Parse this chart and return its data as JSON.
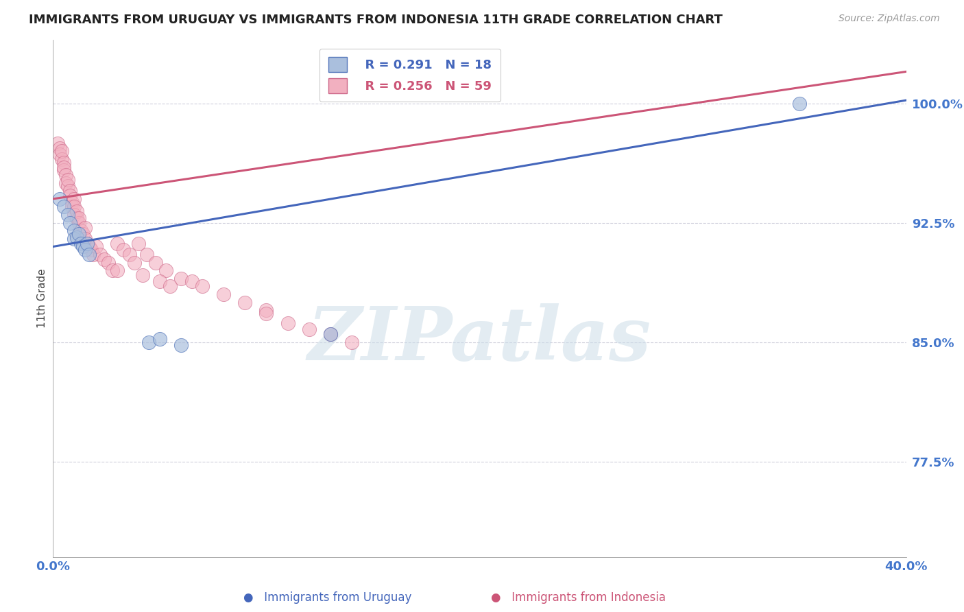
{
  "title": "IMMIGRANTS FROM URUGUAY VS IMMIGRANTS FROM INDONESIA 11TH GRADE CORRELATION CHART",
  "source_text": "Source: ZipAtlas.com",
  "ylabel": "11th Grade",
  "ytick_vals": [
    0.775,
    0.85,
    0.925,
    1.0
  ],
  "ytick_labels": [
    "77.5%",
    "85.0%",
    "92.5%",
    "100.0%"
  ],
  "xmin": 0.0,
  "xmax": 0.4,
  "ymin": 0.715,
  "ymax": 1.04,
  "legend_r_blue": "R = 0.291",
  "legend_n_blue": "N = 18",
  "legend_r_pink": "R = 0.256",
  "legend_n_pink": "N = 59",
  "legend_label_blue": "Immigrants from Uruguay",
  "legend_label_pink": "Immigrants from Indonesia",
  "blue_fill": "#aabfdd",
  "pink_fill": "#f2b0c0",
  "blue_edge": "#5577bb",
  "pink_edge": "#cc6688",
  "blue_line": "#4466bb",
  "pink_line": "#cc5577",
  "tick_color": "#4477cc",
  "watermark_color": "#ccdde8",
  "watermark_text": "ZIPatlas",
  "uruguay_x": [
    0.003,
    0.005,
    0.007,
    0.008,
    0.01,
    0.01,
    0.011,
    0.012,
    0.013,
    0.014,
    0.015,
    0.016,
    0.017,
    0.045,
    0.05,
    0.06,
    0.35,
    0.13
  ],
  "uruguay_y": [
    0.94,
    0.935,
    0.93,
    0.925,
    0.92,
    0.915,
    0.916,
    0.918,
    0.912,
    0.91,
    0.908,
    0.912,
    0.905,
    0.85,
    0.852,
    0.848,
    1.0,
    0.855
  ],
  "indonesia_x": [
    0.002,
    0.003,
    0.003,
    0.004,
    0.004,
    0.005,
    0.005,
    0.005,
    0.006,
    0.006,
    0.007,
    0.007,
    0.008,
    0.008,
    0.009,
    0.009,
    0.01,
    0.01,
    0.01,
    0.011,
    0.011,
    0.012,
    0.012,
    0.013,
    0.014,
    0.015,
    0.015,
    0.016,
    0.017,
    0.018,
    0.019,
    0.02,
    0.022,
    0.024,
    0.026,
    0.028,
    0.03,
    0.033,
    0.036,
    0.04,
    0.044,
    0.048,
    0.053,
    0.06,
    0.065,
    0.07,
    0.08,
    0.09,
    0.1,
    0.03,
    0.038,
    0.042,
    0.05,
    0.055,
    0.1,
    0.11,
    0.12,
    0.13,
    0.14
  ],
  "indonesia_y": [
    0.975,
    0.972,
    0.968,
    0.965,
    0.97,
    0.963,
    0.958,
    0.96,
    0.955,
    0.95,
    0.948,
    0.952,
    0.945,
    0.942,
    0.938,
    0.935,
    0.94,
    0.935,
    0.93,
    0.928,
    0.932,
    0.925,
    0.928,
    0.92,
    0.918,
    0.922,
    0.915,
    0.912,
    0.91,
    0.908,
    0.905,
    0.91,
    0.905,
    0.902,
    0.9,
    0.895,
    0.912,
    0.908,
    0.905,
    0.912,
    0.905,
    0.9,
    0.895,
    0.89,
    0.888,
    0.885,
    0.88,
    0.875,
    0.87,
    0.895,
    0.9,
    0.892,
    0.888,
    0.885,
    0.868,
    0.862,
    0.858,
    0.855,
    0.85
  ]
}
